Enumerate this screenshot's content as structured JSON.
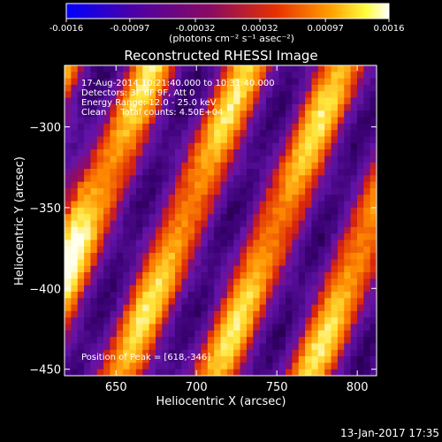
{
  "chart_data": {
    "type": "heatmap",
    "title": "Reconstructed RHESSI Image",
    "colorbar": {
      "ticks": [
        "-0.0016",
        "-0.00097",
        "-0.00032",
        "0.00032",
        "0.00097",
        "0.0016"
      ],
      "min": -0.0016,
      "max": 0.0016,
      "unit_label": "(photons cm⁻² s⁻¹ asec⁻²)"
    },
    "xlabel": "Heliocentric X (arcsec)",
    "ylabel": "Heliocentric Y (arcsec)",
    "xlim": [
      618,
      812
    ],
    "ylim": [
      -454,
      -262
    ],
    "x_ticks": [
      "650",
      "700",
      "750",
      "800"
    ],
    "y_ticks": [
      "-300",
      "-350",
      "-400",
      "-450"
    ],
    "annotation_lines": [
      "17-Aug-2014 10:21:40.000 to 10:31:40.000",
      "Detectors: 3F 6F 9F, Att 0",
      "Energy Range: 12.0 - 25.0 keV",
      "Clean     Total counts: 4.50E+04"
    ],
    "peak_label": "Position of Peak = [618,-346]",
    "peak": [
      618,
      -346
    ],
    "colormap": "black-purple-red-orange-yellow-white",
    "pattern": "diagonal alternating bright/dark stripes"
  },
  "footer": {
    "timestamp": "13-Jan-2017 17:35"
  }
}
